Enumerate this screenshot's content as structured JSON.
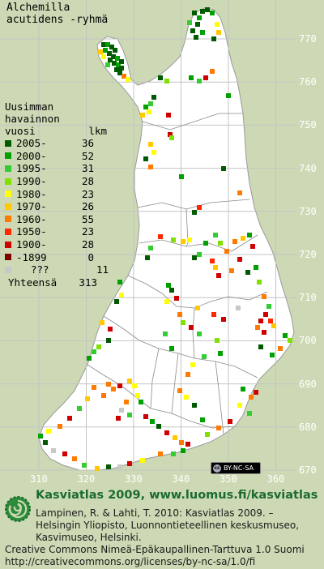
{
  "title": {
    "line1": "Alchemilla",
    "line2": "acutidens -ryhmä"
  },
  "legend": {
    "heading_line1": "Uusimman",
    "heading_line2": "havainnon",
    "heading_line3": "vuosi",
    "count_heading": "lkm",
    "rows": [
      {
        "year": "2005-",
        "count": "36",
        "color": "#005a00"
      },
      {
        "year": "2000-",
        "count": "52",
        "color": "#00a000"
      },
      {
        "year": "1995-",
        "count": "31",
        "color": "#33cc33"
      },
      {
        "year": "1990-",
        "count": "28",
        "color": "#80e000"
      },
      {
        "year": "1980-",
        "count": "23",
        "color": "#ffff00"
      },
      {
        "year": "1970-",
        "count": "26",
        "color": "#ffc800"
      },
      {
        "year": "1960-",
        "count": "55",
        "color": "#ff7a00"
      },
      {
        "year": "1950-",
        "count": "23",
        "color": "#ff2800"
      },
      {
        "year": "1900-",
        "count": "28",
        "color": "#d00000"
      },
      {
        "year": "-1899",
        "count": "0",
        "color": "#800000"
      },
      {
        "year": "???",
        "count": "11",
        "color": "#c8c8c8"
      }
    ],
    "total_label": "Yhteensä",
    "total_value": "313"
  },
  "axes": {
    "y_ticks": [
      "770",
      "760",
      "750",
      "740",
      "730",
      "720",
      "710",
      "700",
      "690",
      "680",
      "670"
    ],
    "x_ticks": [
      "310",
      "320",
      "330",
      "340",
      "350",
      "360"
    ]
  },
  "badge": {
    "cc": "cc",
    "text": "BY-NC-SA"
  },
  "footer": {
    "title": "Kasviatlas 2009, www.luomus.fi/kasviatlas",
    "ref_line1": "Lampinen, R. & Lahti, T. 2010: Kasviatlas 2009. –",
    "ref_line2": "Helsingin Yliopisto, Luonnontieteellinen keskusmuseo,",
    "ref_line3": "Kasvimuseo, Helsinki.",
    "license_line1": "Creative Commons Nimeä-Epäkaupallinen-Tarttuva 1.0 Suomi",
    "license_line2": "http://creativecommons.org/licenses/by-nc-sa/1.0/fi"
  },
  "colors": {
    "background": "#cdd9b4",
    "land": "#ffffff",
    "grid": "#bcbcbc",
    "border": "#8a8a8a",
    "footer_title": "#1b6b2d"
  }
}
